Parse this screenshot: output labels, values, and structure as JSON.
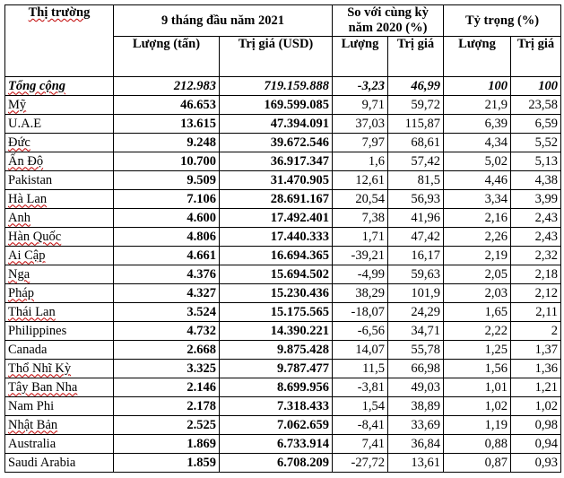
{
  "header": {
    "market": "Thị trường",
    "period": "9 tháng đầu năm 2021",
    "compare": "So với cùng kỳ năm 2020 (%)",
    "share": "Tỷ trọng (%)",
    "volume_tons": "Lượng (tấn)",
    "value_usd": "Trị giá (USD)",
    "volume": "Lượng",
    "value": "Trị giá"
  },
  "rows": [
    {
      "name": "Tổng cộng",
      "vol": "212.983",
      "val": "719.159.888",
      "cmp_vol": "-3,23",
      "cmp_val": "46,99",
      "sh_vol": "100",
      "sh_val": "100"
    },
    {
      "name": "Mỹ",
      "vol": "46.653",
      "val": "169.599.085",
      "cmp_vol": "9,71",
      "cmp_val": "59,72",
      "sh_vol": "21,9",
      "sh_val": "23,58"
    },
    {
      "name": "U.A.E",
      "vol": "13.615",
      "val": "47.394.091",
      "cmp_vol": "37,03",
      "cmp_val": "115,87",
      "sh_vol": "6,39",
      "sh_val": "6,59"
    },
    {
      "name": "Đức",
      "vol": "9.248",
      "val": "39.672.546",
      "cmp_vol": "7,97",
      "cmp_val": "68,61",
      "sh_vol": "4,34",
      "sh_val": "5,52"
    },
    {
      "name": "Ấn Độ",
      "vol": "10.700",
      "val": "36.917.347",
      "cmp_vol": "1,6",
      "cmp_val": "57,42",
      "sh_vol": "5,02",
      "sh_val": "5,13"
    },
    {
      "name": "Pakistan",
      "vol": "9.509",
      "val": "31.470.905",
      "cmp_vol": "12,61",
      "cmp_val": "81,5",
      "sh_vol": "4,46",
      "sh_val": "4,38"
    },
    {
      "name": "Hà Lan",
      "vol": "7.106",
      "val": "28.691.167",
      "cmp_vol": "20,54",
      "cmp_val": "56,93",
      "sh_vol": "3,34",
      "sh_val": "3,99"
    },
    {
      "name": "Anh",
      "vol": "4.600",
      "val": "17.492.401",
      "cmp_vol": "7,38",
      "cmp_val": "41,96",
      "sh_vol": "2,16",
      "sh_val": "2,43"
    },
    {
      "name": "Hàn Quốc",
      "vol": "4.806",
      "val": "17.440.333",
      "cmp_vol": "1,71",
      "cmp_val": "47,42",
      "sh_vol": "2,26",
      "sh_val": "2,43"
    },
    {
      "name": "Ai Cập",
      "vol": "4.661",
      "val": "16.694.365",
      "cmp_vol": "-39,21",
      "cmp_val": "16,17",
      "sh_vol": "2,19",
      "sh_val": "2,32"
    },
    {
      "name": "Nga",
      "vol": "4.376",
      "val": "15.694.502",
      "cmp_vol": "-4,99",
      "cmp_val": "59,63",
      "sh_vol": "2,05",
      "sh_val": "2,18"
    },
    {
      "name": "Pháp",
      "vol": "4.327",
      "val": "15.230.436",
      "cmp_vol": "38,29",
      "cmp_val": "101,9",
      "sh_vol": "2,03",
      "sh_val": "2,12"
    },
    {
      "name": "Thái Lan",
      "vol": "3.524",
      "val": "15.175.565",
      "cmp_vol": "-18,07",
      "cmp_val": "24,29",
      "sh_vol": "1,65",
      "sh_val": "2,11"
    },
    {
      "name": "Philippines",
      "vol": "4.732",
      "val": "14.390.221",
      "cmp_vol": "-6,56",
      "cmp_val": "34,71",
      "sh_vol": "2,22",
      "sh_val": "2"
    },
    {
      "name": "Canada",
      "vol": "2.668",
      "val": "9.875.428",
      "cmp_vol": "14,07",
      "cmp_val": "55,78",
      "sh_vol": "1,25",
      "sh_val": "1,37"
    },
    {
      "name": "Thổ Nhĩ Kỳ",
      "vol": "3.325",
      "val": "9.787.477",
      "cmp_vol": "11,5",
      "cmp_val": "66,98",
      "sh_vol": "1,56",
      "sh_val": "1,36"
    },
    {
      "name": "Tây Ban Nha",
      "vol": "2.146",
      "val": "8.699.956",
      "cmp_vol": "-3,81",
      "cmp_val": "49,03",
      "sh_vol": "1,01",
      "sh_val": "1,21"
    },
    {
      "name": "Nam Phi",
      "vol": "2.178",
      "val": "7.318.433",
      "cmp_vol": "1,54",
      "cmp_val": "38,89",
      "sh_vol": "1,02",
      "sh_val": "1,02"
    },
    {
      "name": "Nhật Bản",
      "vol": "2.525",
      "val": "7.062.659",
      "cmp_vol": "-8,41",
      "cmp_val": "33,69",
      "sh_vol": "1,19",
      "sh_val": "0,98"
    },
    {
      "name": "Australia",
      "vol": "1.869",
      "val": "6.733.914",
      "cmp_vol": "7,41",
      "cmp_val": "36,84",
      "sh_vol": "0,88",
      "sh_val": "0,94"
    },
    {
      "name": "Saudi Arabia",
      "vol": "1.859",
      "val": "6.708.209",
      "cmp_vol": "-27,72",
      "cmp_val": "13,61",
      "sh_vol": "0,87",
      "sh_val": "0,93"
    }
  ],
  "colors": {
    "spellcheck_underline": "#c00000"
  }
}
